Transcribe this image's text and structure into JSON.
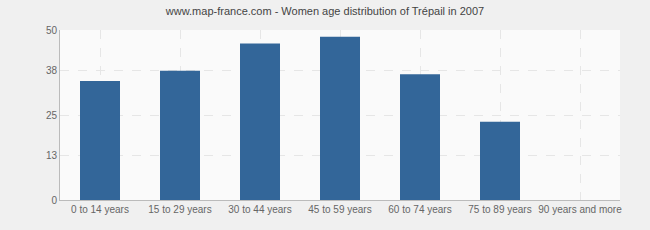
{
  "chart_data": {
    "type": "bar",
    "title": "www.map-france.com - Women age distribution of Trépail in 2007",
    "categories": [
      "0 to 14 years",
      "15 to 29 years",
      "30 to 44 years",
      "45 to 59 years",
      "60 to 74 years",
      "75 to 89 years",
      "90 years and more"
    ],
    "values": [
      35,
      38,
      46,
      48,
      37,
      23,
      0
    ],
    "color": "#336699",
    "ylim": [
      0,
      50
    ],
    "yticks": [
      0,
      13,
      25,
      38,
      50
    ],
    "grid": true
  }
}
